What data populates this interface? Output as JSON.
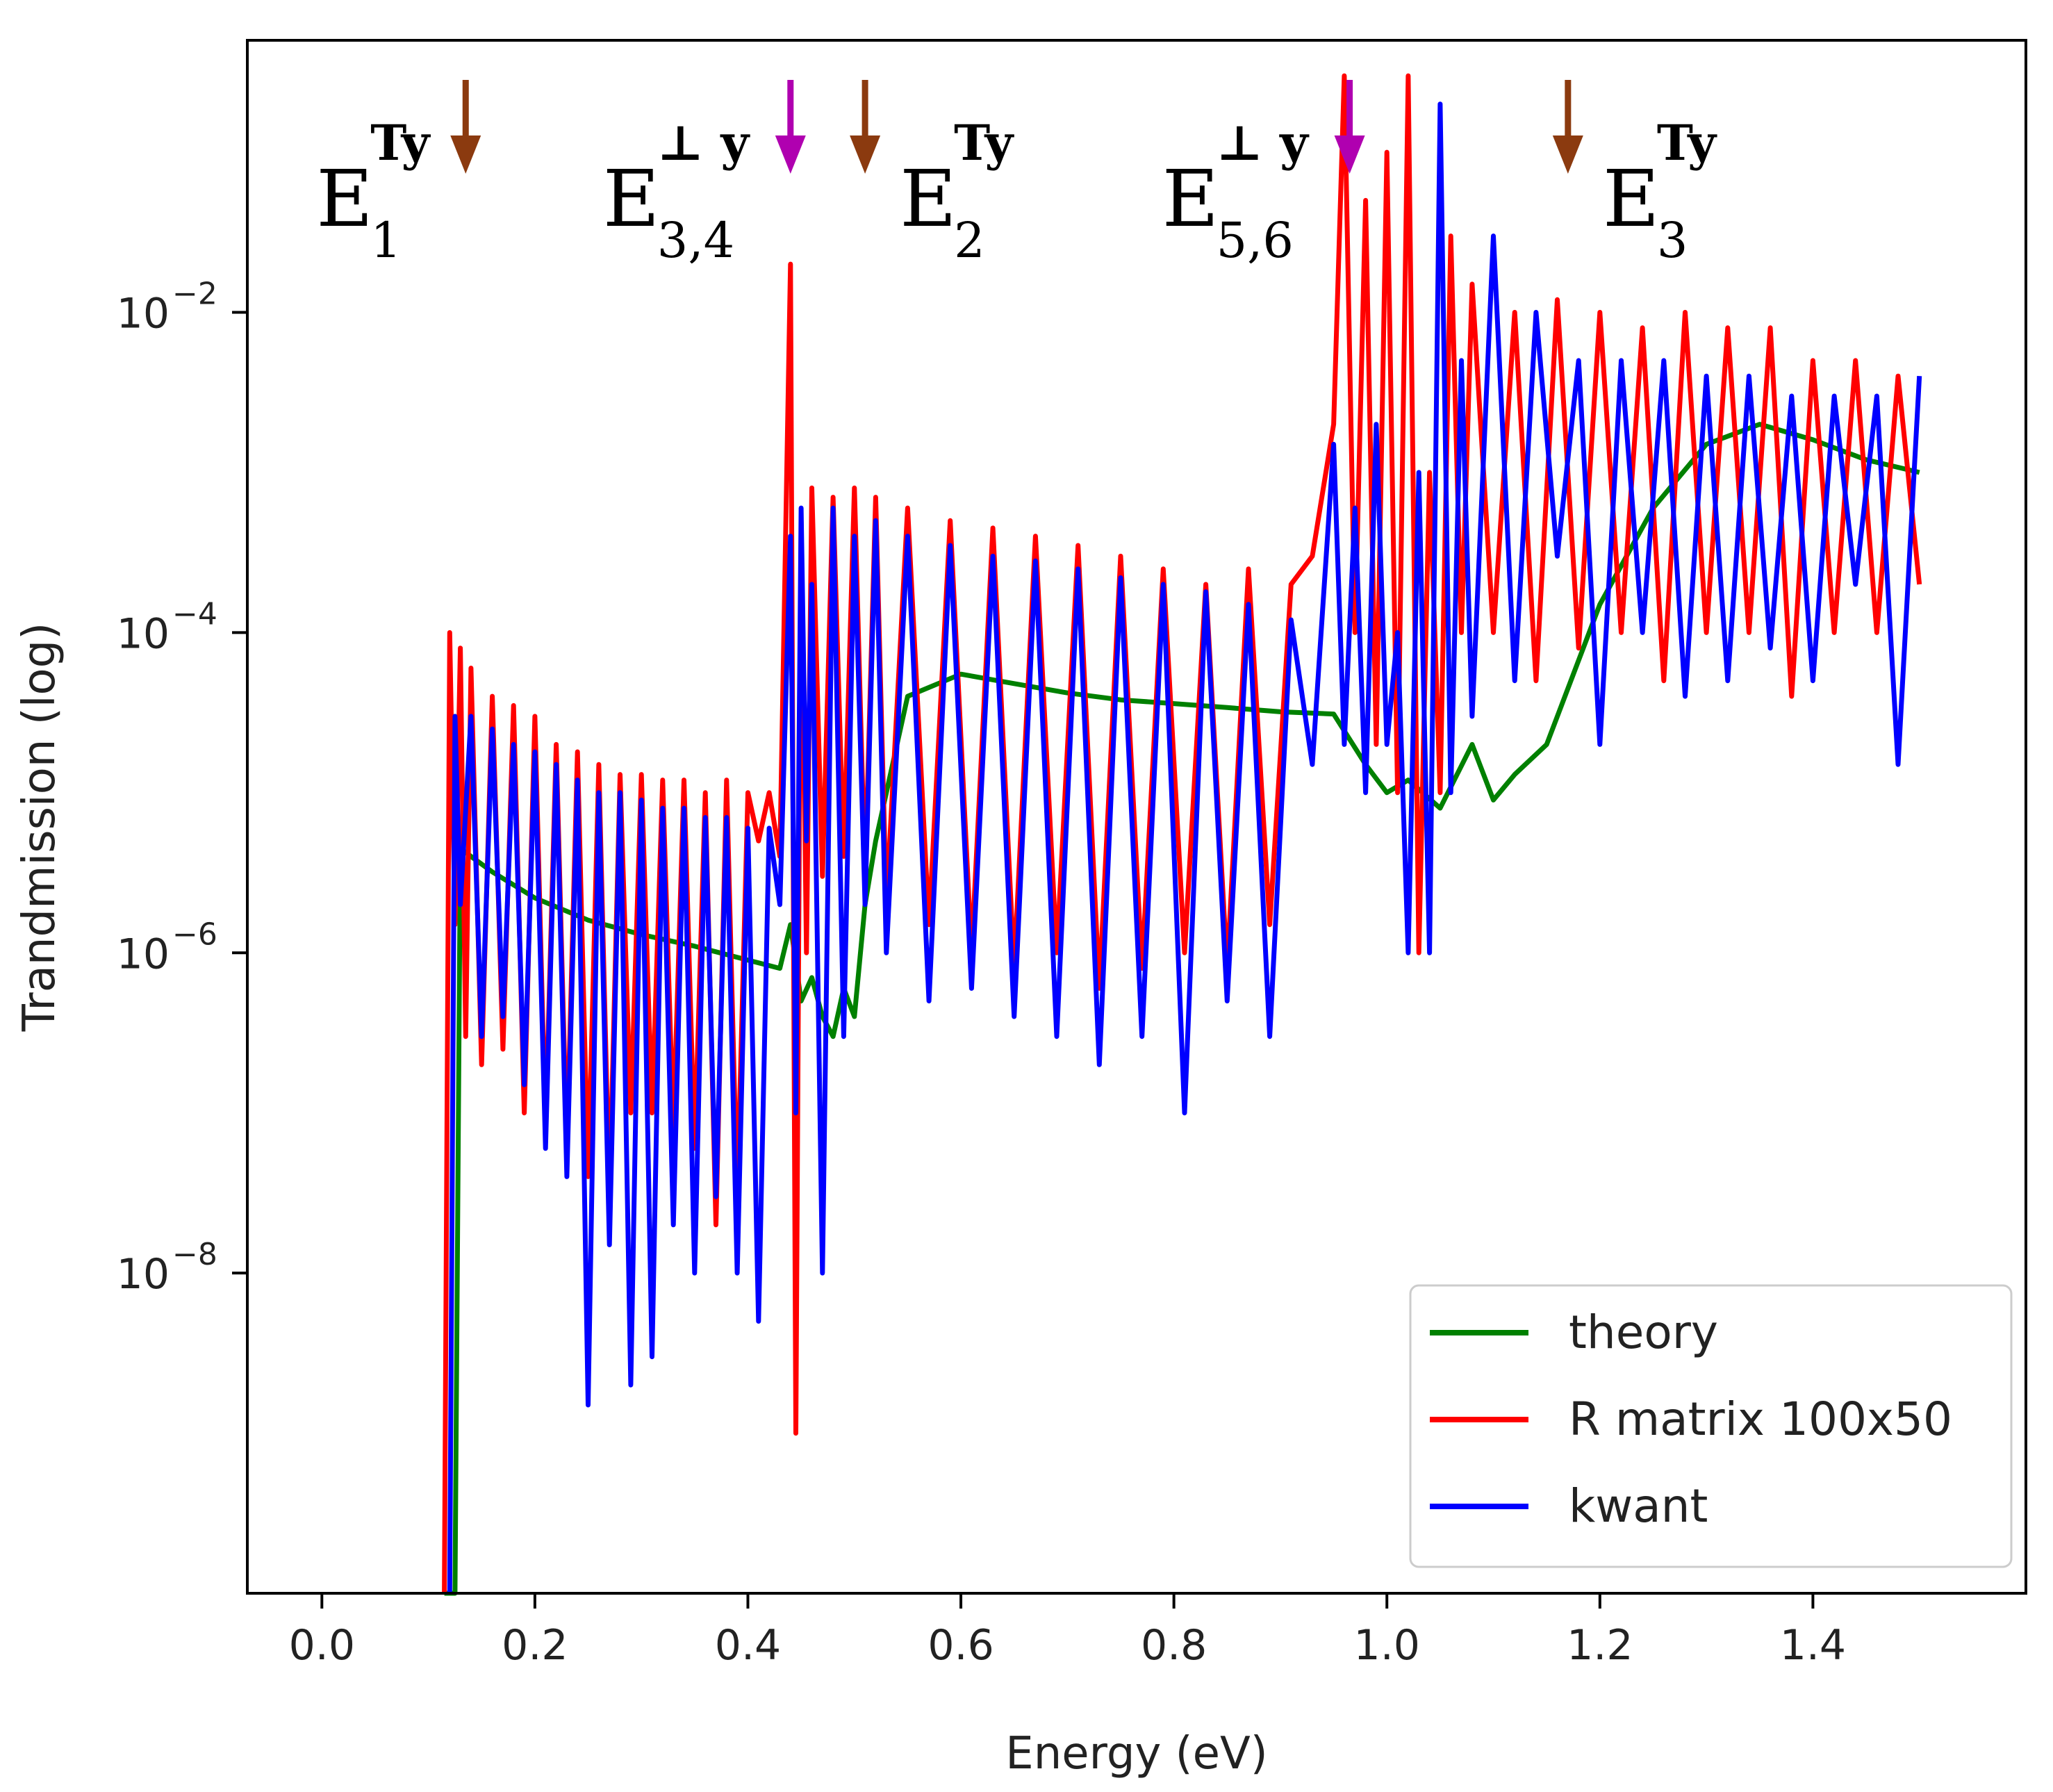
{
  "chart_data": {
    "type": "line",
    "title": "",
    "xlabel": "Energy (eV)",
    "ylabel": "Trandmission (log)",
    "yscale": "log",
    "xlim": [
      -0.07,
      1.6
    ],
    "ylim": [
      1e-10,
      0.5
    ],
    "xticks": [
      0.0,
      0.2,
      0.4,
      0.6,
      0.8,
      1.0,
      1.2,
      1.4
    ],
    "xtick_labels": [
      "0.0",
      "0.2",
      "0.4",
      "0.6",
      "0.8",
      "1.0",
      "1.2",
      "1.4"
    ],
    "yticks": [
      {
        "value": 1e-08,
        "base": "10",
        "exp": "−8"
      },
      {
        "value": 1e-06,
        "base": "10",
        "exp": "−6"
      },
      {
        "value": 0.0001,
        "base": "10",
        "exp": "−4"
      },
      {
        "value": 0.01,
        "base": "10",
        "exp": "−2"
      }
    ],
    "grid": false,
    "legend_position": "bottom-right",
    "series": [
      {
        "name": "theory",
        "color": "#008000",
        "x": [
          0.115,
          0.125,
          0.13,
          0.14,
          0.16,
          0.2,
          0.25,
          0.3,
          0.35,
          0.4,
          0.43,
          0.44,
          0.45,
          0.46,
          0.47,
          0.48,
          0.49,
          0.5,
          0.51,
          0.52,
          0.53,
          0.55,
          0.6,
          0.65,
          0.7,
          0.75,
          0.8,
          0.85,
          0.9,
          0.95,
          0.98,
          1.0,
          1.02,
          1.05,
          1.08,
          1.1,
          1.12,
          1.15,
          1.2,
          1.25,
          1.3,
          1.35,
          1.4,
          1.45,
          1.5
        ],
        "y": [
          1e-10,
          1e-10,
          4.5e-06,
          4e-06,
          3.2e-06,
          2.2e-06,
          1.6e-06,
          1.3e-06,
          1.1e-06,
          9e-07,
          8e-07,
          1.5e-06,
          5e-07,
          7e-07,
          4e-07,
          3e-07,
          6e-07,
          4e-07,
          2e-06,
          5e-06,
          1e-05,
          4e-05,
          5.5e-05,
          4.8e-05,
          4.2e-05,
          3.8e-05,
          3.6e-05,
          3.4e-05,
          3.2e-05,
          3.1e-05,
          1.5e-05,
          1e-05,
          1.2e-05,
          8e-06,
          2e-05,
          9e-06,
          1.3e-05,
          2e-05,
          0.00015,
          0.0006,
          0.0015,
          0.002,
          0.0016,
          0.0012,
          0.001
        ]
      },
      {
        "name": "R matrix 100x50",
        "color": "#ff0000",
        "x": [
          0.115,
          0.12,
          0.125,
          0.13,
          0.135,
          0.14,
          0.15,
          0.16,
          0.17,
          0.18,
          0.19,
          0.2,
          0.21,
          0.22,
          0.23,
          0.24,
          0.25,
          0.26,
          0.27,
          0.28,
          0.29,
          0.3,
          0.31,
          0.32,
          0.33,
          0.34,
          0.35,
          0.36,
          0.37,
          0.38,
          0.39,
          0.4,
          0.41,
          0.42,
          0.43,
          0.44,
          0.445,
          0.45,
          0.455,
          0.46,
          0.47,
          0.48,
          0.49,
          0.5,
          0.51,
          0.52,
          0.53,
          0.55,
          0.57,
          0.59,
          0.61,
          0.63,
          0.65,
          0.67,
          0.69,
          0.71,
          0.73,
          0.75,
          0.77,
          0.79,
          0.81,
          0.83,
          0.85,
          0.87,
          0.89,
          0.91,
          0.93,
          0.95,
          0.96,
          0.97,
          0.98,
          0.99,
          1.0,
          1.01,
          1.02,
          1.03,
          1.04,
          1.05,
          1.06,
          1.07,
          1.08,
          1.1,
          1.12,
          1.14,
          1.16,
          1.18,
          1.2,
          1.22,
          1.24,
          1.26,
          1.28,
          1.3,
          1.32,
          1.34,
          1.36,
          1.38,
          1.4,
          1.42,
          1.44,
          1.46,
          1.48,
          1.5
        ],
        "y": [
          1e-10,
          0.0001,
          1.5e-06,
          8e-05,
          3e-07,
          6e-05,
          2e-07,
          4e-05,
          2.5e-07,
          3.5e-05,
          1e-07,
          3e-05,
          8e-08,
          2e-05,
          6e-08,
          1.8e-05,
          4e-08,
          1.5e-05,
          3e-08,
          1.3e-05,
          1e-07,
          1.3e-05,
          1e-07,
          1.2e-05,
          8e-08,
          1.2e-05,
          6e-08,
          1e-05,
          2e-08,
          1.2e-05,
          3e-08,
          1e-05,
          5e-06,
          1e-05,
          4e-06,
          0.02,
          1e-09,
          0.0005,
          1e-06,
          0.0008,
          3e-06,
          0.0007,
          4e-06,
          0.0008,
          3e-06,
          0.0007,
          2e-06,
          0.0006,
          1.5e-06,
          0.0005,
          1e-06,
          0.00045,
          8e-07,
          0.0004,
          1e-06,
          0.00035,
          6e-07,
          0.0003,
          8e-07,
          0.00025,
          1e-06,
          0.0002,
          8e-07,
          0.00025,
          1.5e-06,
          0.0002,
          0.0003,
          0.002,
          0.3,
          0.0001,
          0.05,
          2e-05,
          0.1,
          1e-05,
          0.3,
          1e-06,
          0.001,
          1e-05,
          0.03,
          0.0001,
          0.015,
          0.0001,
          0.01,
          5e-05,
          0.012,
          8e-05,
          0.01,
          0.0001,
          0.008,
          5e-05,
          0.01,
          0.0001,
          0.008,
          0.0001,
          0.008,
          4e-05,
          0.005,
          0.0001,
          0.005,
          0.0001,
          0.004,
          0.0002
        ]
      },
      {
        "name": "kwant",
        "color": "#0000ff",
        "x": [
          0.12,
          0.125,
          0.13,
          0.14,
          0.15,
          0.16,
          0.17,
          0.18,
          0.19,
          0.2,
          0.21,
          0.22,
          0.23,
          0.24,
          0.25,
          0.26,
          0.27,
          0.28,
          0.29,
          0.3,
          0.31,
          0.32,
          0.33,
          0.34,
          0.35,
          0.36,
          0.37,
          0.38,
          0.39,
          0.4,
          0.41,
          0.42,
          0.43,
          0.44,
          0.445,
          0.45,
          0.455,
          0.46,
          0.47,
          0.48,
          0.49,
          0.5,
          0.51,
          0.52,
          0.53,
          0.55,
          0.57,
          0.59,
          0.61,
          0.63,
          0.65,
          0.67,
          0.69,
          0.71,
          0.73,
          0.75,
          0.77,
          0.79,
          0.81,
          0.83,
          0.85,
          0.87,
          0.89,
          0.91,
          0.93,
          0.95,
          0.96,
          0.97,
          0.98,
          0.99,
          1.0,
          1.01,
          1.02,
          1.03,
          1.04,
          1.05,
          1.06,
          1.07,
          1.08,
          1.1,
          1.12,
          1.14,
          1.16,
          1.18,
          1.2,
          1.22,
          1.24,
          1.26,
          1.28,
          1.3,
          1.32,
          1.34,
          1.36,
          1.38,
          1.4,
          1.42,
          1.44,
          1.46,
          1.48,
          1.5
        ],
        "y": [
          1e-10,
          3e-05,
          2e-06,
          3e-05,
          3e-07,
          2.5e-05,
          4e-07,
          2e-05,
          1.5e-07,
          1.8e-05,
          6e-08,
          1.5e-05,
          4e-08,
          1.2e-05,
          1.5e-09,
          1e-05,
          1.5e-08,
          1e-05,
          2e-09,
          9e-06,
          3e-09,
          8e-06,
          2e-08,
          8e-06,
          1e-08,
          7e-06,
          3e-08,
          7e-06,
          1e-08,
          6e-06,
          5e-09,
          6e-06,
          2e-06,
          0.0004,
          1e-07,
          0.0006,
          5e-06,
          0.0002,
          1e-08,
          0.0006,
          3e-07,
          0.0004,
          2e-06,
          0.0005,
          1e-06,
          0.0004,
          5e-07,
          0.00035,
          6e-07,
          0.0003,
          4e-07,
          0.00028,
          3e-07,
          0.00025,
          2e-07,
          0.00022,
          3e-07,
          0.0002,
          1e-07,
          0.00018,
          5e-07,
          0.00015,
          3e-07,
          0.00012,
          1.5e-05,
          0.0015,
          2e-05,
          0.0006,
          1e-05,
          0.002,
          2e-05,
          0.0001,
          1e-06,
          0.001,
          1e-06,
          0.2,
          1e-05,
          0.005,
          3e-05,
          0.03,
          5e-05,
          0.01,
          0.0003,
          0.005,
          2e-05,
          0.005,
          0.0001,
          0.005,
          4e-05,
          0.004,
          5e-05,
          0.004,
          8e-05,
          0.003,
          5e-05,
          0.003,
          0.0002,
          0.003,
          1.5e-05,
          0.004
        ]
      }
    ],
    "annotations": [
      {
        "main": "E",
        "sup": "Ty",
        "sub": "1",
        "x": 0.135,
        "arrow_color": "#8b3a0f"
      },
      {
        "main": "E",
        "sup": "⊥ y",
        "sub": "3,4",
        "x": 0.44,
        "arrow_color": "#b000b0"
      },
      {
        "main": "E",
        "sup": "Ty",
        "sub": "2",
        "x": 0.51,
        "arrow_color": "#8b3a0f"
      },
      {
        "main": "E",
        "sup": "⊥ y",
        "sub": "5,6",
        "x": 0.965,
        "arrow_color": "#b000b0"
      },
      {
        "main": "E",
        "sup": "Ty",
        "sub": "3",
        "x": 1.17,
        "arrow_color": "#8b3a0f"
      }
    ]
  }
}
